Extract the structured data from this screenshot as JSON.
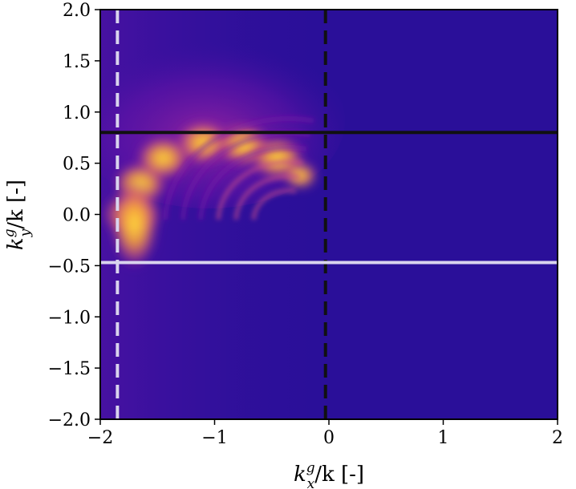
{
  "chart_data": {
    "type": "heatmap",
    "title": "",
    "xlabel": "k_x^g/k [-]",
    "ylabel": "k_y^g/k [-]",
    "xlim": [
      -2.0,
      2.0
    ],
    "ylim": [
      -2.0,
      2.0
    ],
    "x_ticks": [
      -2,
      -1,
      0,
      1,
      2
    ],
    "x_tick_labels": [
      "−2",
      "−1",
      "0",
      "1",
      "2"
    ],
    "y_ticks": [
      2.0,
      1.5,
      1.0,
      0.5,
      0.0,
      -0.5,
      -1.0,
      -1.5,
      -2.0
    ],
    "y_tick_labels": [
      "2.0",
      "1.5",
      "1.0",
      "0.5",
      "0.0",
      "−0.5",
      "−1.0",
      "−1.5",
      "−2.0"
    ],
    "colormap": "plasma",
    "grid": false,
    "reference_lines": [
      {
        "orientation": "vertical",
        "value": -1.85,
        "style": "dashed",
        "color": "#d9d4ee"
      },
      {
        "orientation": "vertical",
        "value": -0.03,
        "style": "dashed",
        "color": "#111111"
      },
      {
        "orientation": "horizontal",
        "value": 0.8,
        "style": "solid",
        "color": "#111111"
      },
      {
        "orientation": "horizontal",
        "value": -0.47,
        "style": "solid",
        "color": "#d9d4ee"
      }
    ],
    "features": [
      {
        "description": "bright arc",
        "x_range": [
          -1.8,
          -0.1
        ],
        "y_range": [
          -0.3,
          0.75
        ],
        "peak_value": "high"
      },
      {
        "description": "background",
        "value": "low"
      }
    ]
  },
  "axis_text": {
    "x_label_main": "k",
    "x_label_sup": "g",
    "x_label_sub": "x",
    "y_label_main": "k",
    "y_label_sup": "g",
    "y_label_sub": "y",
    "label_tail": "/k [-]"
  }
}
